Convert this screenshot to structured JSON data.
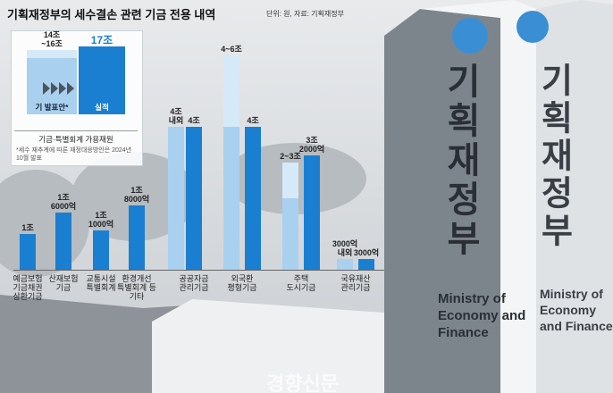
{
  "title": "기획재정부의 세수결손 관련 기금 전용 내역",
  "subtitle": "단위: 원, 자료: 기획재정부",
  "chart_data": [
    {
      "type": "bar",
      "caption": "기금·특별회계 가용재원",
      "footnote": "*세수 재추계에 따른 재정대응방안은 2024년 10월 발표",
      "series": [
        {
          "name": "기 발표안*",
          "color": "#a9d0ef",
          "range_color": "#d6e9f8",
          "low": [
            14
          ],
          "high": [
            16
          ],
          "value_labels": [
            "14조~16조"
          ]
        },
        {
          "name": "실적",
          "color": "#1a7fd1",
          "values": [
            17
          ],
          "value_labels": [
            "17조"
          ]
        }
      ]
    },
    {
      "type": "bar",
      "categories": [
        "예금보험 기금채권 상환기금",
        "산재보험 기금",
        "교통시설 특별회계",
        "환경개선 특별회계 등 기타",
        "공공자금 관리기금",
        "외국환 평형기금",
        "주택 도시기금",
        "국유재산 관리기금"
      ],
      "series": [
        {
          "color": "#a9d0ef",
          "range_color": "#d6e9f8",
          "low": [
            null,
            null,
            null,
            null,
            4,
            4,
            2,
            0.3
          ],
          "high": [
            null,
            null,
            null,
            null,
            4,
            6,
            3,
            0.3
          ],
          "value_labels": [
            null,
            null,
            null,
            null,
            "4조 내외",
            "4~6조",
            "2~3조",
            "3000억 내외"
          ]
        },
        {
          "color": "#1a7fd1",
          "values": [
            1,
            1.6,
            1.1,
            1.8,
            4,
            4,
            3.2,
            0.3
          ],
          "value_labels": [
            "1조",
            "1조 6000억",
            "1조 1000억",
            "1조 8000억",
            "4조",
            "4조",
            "3조 2000억",
            "3000억"
          ]
        }
      ]
    }
  ],
  "background": {
    "sign_ko": "기획재정부",
    "sign_en": "Ministry of Economy and Finance",
    "watermark": "경향신문"
  }
}
